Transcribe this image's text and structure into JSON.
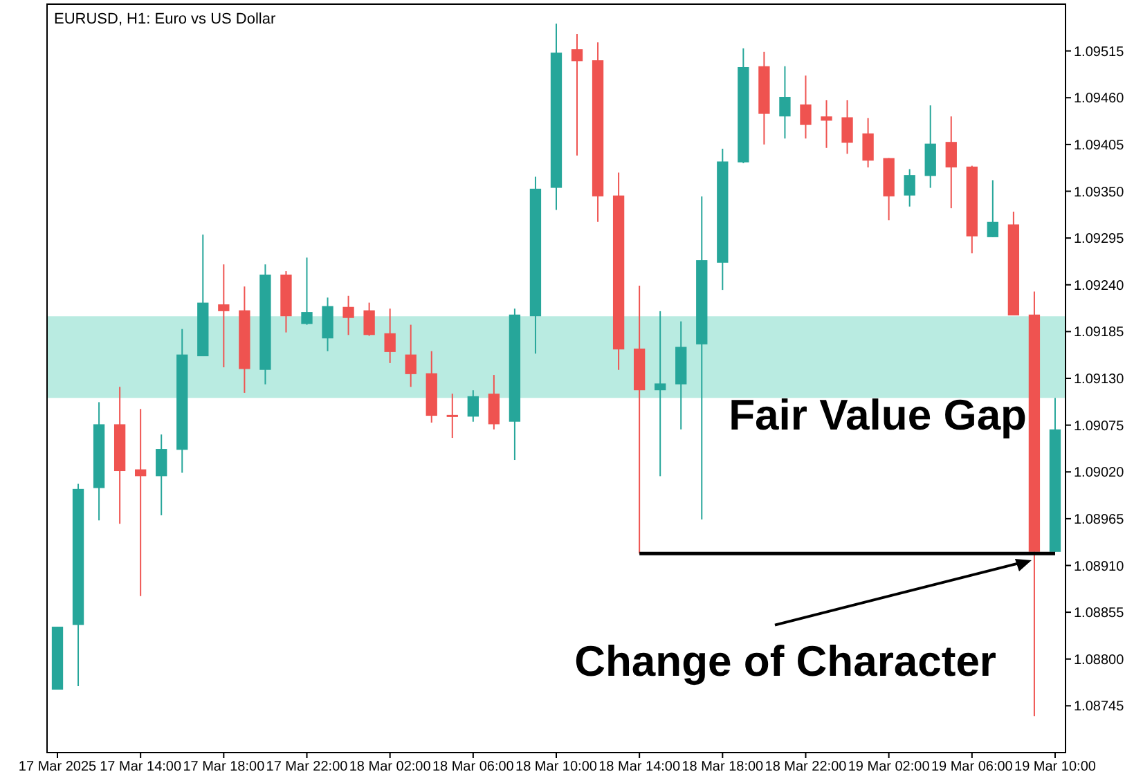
{
  "chart_data": {
    "type": "candlestick",
    "title": "EURUSD, H1:  Euro vs US Dollar",
    "categories": [
      "17 Mar 2025",
      null,
      null,
      null,
      "17 Mar 14:00",
      null,
      null,
      null,
      "17 Mar 18:00",
      null,
      null,
      null,
      "17 Mar 22:00",
      null,
      null,
      null,
      "18 Mar 02:00",
      null,
      null,
      null,
      "18 Mar 06:00",
      null,
      null,
      null,
      "18 Mar 10:00",
      null,
      null,
      null,
      "18 Mar 14:00",
      null,
      null,
      null,
      "18 Mar 18:00",
      null,
      null,
      null,
      "18 Mar 22:00",
      null,
      null,
      null,
      "19 Mar 02:00",
      null,
      null,
      null,
      "19 Mar 06:00",
      null,
      null,
      null,
      "19 Mar 10:00"
    ],
    "ohlc": [
      [
        1.08764,
        1.08838,
        1.08764,
        1.08838
      ],
      [
        1.0884,
        1.09006,
        1.08768,
        1.09
      ],
      [
        1.09001,
        1.09102,
        1.08963,
        1.09076
      ],
      [
        1.09076,
        1.0912,
        1.08959,
        1.09021
      ],
      [
        1.09023,
        1.09094,
        1.08874,
        1.09015
      ],
      [
        1.09015,
        1.09064,
        1.08969,
        1.09047
      ],
      [
        1.09046,
        1.09188,
        1.09019,
        1.09158
      ],
      [
        1.09156,
        1.09299,
        1.09156,
        1.09219
      ],
      [
        1.09217,
        1.09264,
        1.09143,
        1.09209
      ],
      [
        1.0921,
        1.09238,
        1.09113,
        1.09141
      ],
      [
        1.0914,
        1.09264,
        1.09123,
        1.09252
      ],
      [
        1.09252,
        1.09256,
        1.09184,
        1.09203
      ],
      [
        1.09194,
        1.09272,
        1.09193,
        1.09208
      ],
      [
        1.09177,
        1.09225,
        1.09162,
        1.09215
      ],
      [
        1.09214,
        1.09227,
        1.09181,
        1.09201
      ],
      [
        1.0921,
        1.09219,
        1.0918,
        1.09181
      ],
      [
        1.09183,
        1.09212,
        1.09148,
        1.09161
      ],
      [
        1.09158,
        1.09193,
        1.0912,
        1.09135
      ],
      [
        1.09136,
        1.09162,
        1.09078,
        1.09086
      ],
      [
        1.09087,
        1.09112,
        1.0906,
        1.09085
      ],
      [
        1.09085,
        1.09116,
        1.09079,
        1.09109
      ],
      [
        1.09112,
        1.09134,
        1.0907,
        1.09076
      ],
      [
        1.09079,
        1.09212,
        1.09034,
        1.09205
      ],
      [
        1.09203,
        1.09367,
        1.09159,
        1.09353
      ],
      [
        1.09354,
        1.09547,
        1.09328,
        1.09513
      ],
      [
        1.09517,
        1.09535,
        1.09392,
        1.09503
      ],
      [
        1.09504,
        1.09525,
        1.09314,
        1.09344
      ],
      [
        1.09345,
        1.09372,
        1.0914,
        1.09164
      ],
      [
        1.09165,
        1.09239,
        1.08924,
        1.09116
      ],
      [
        1.09116,
        1.09209,
        1.09015,
        1.09124
      ],
      [
        1.09123,
        1.09197,
        1.0907,
        1.09167
      ],
      [
        1.0917,
        1.09344,
        1.08964,
        1.09269
      ],
      [
        1.09266,
        1.094,
        1.09234,
        1.09385
      ],
      [
        1.09384,
        1.09518,
        1.09383,
        1.09496
      ],
      [
        1.09497,
        1.09514,
        1.09405,
        1.09441
      ],
      [
        1.09438,
        1.09497,
        1.09412,
        1.09461
      ],
      [
        1.09452,
        1.09486,
        1.09412,
        1.09428
      ],
      [
        1.09438,
        1.09457,
        1.09401,
        1.09433
      ],
      [
        1.09437,
        1.09457,
        1.09394,
        1.09407
      ],
      [
        1.09418,
        1.09436,
        1.09378,
        1.09386
      ],
      [
        1.09389,
        1.09389,
        1.09316,
        1.09344
      ],
      [
        1.09345,
        1.09376,
        1.09332,
        1.09369
      ],
      [
        1.09368,
        1.09451,
        1.09354,
        1.09406
      ],
      [
        1.09408,
        1.09438,
        1.0933,
        1.09378
      ],
      [
        1.09379,
        1.0938,
        1.09277,
        1.09297
      ],
      [
        1.09296,
        1.09363,
        1.09296,
        1.09314
      ],
      [
        1.09311,
        1.09326,
        1.09204,
        1.09204
      ],
      [
        1.09205,
        1.09232,
        1.08733,
        1.08926
      ],
      [
        1.08926,
        1.09107,
        1.08926,
        1.0907
      ]
    ],
    "colors": [
      "#26a69a",
      "#26a69a",
      "#26a69a",
      "#ef5350",
      "#ef5350",
      "#26a69a",
      "#26a69a",
      "#26a69a",
      "#ef5350",
      "#ef5350",
      "#26a69a",
      "#ef5350",
      "#26a69a",
      "#26a69a",
      "#ef5350",
      "#ef5350",
      "#ef5350",
      "#ef5350",
      "#ef5350",
      "#ef5350",
      "#26a69a",
      "#ef5350",
      "#26a69a",
      "#26a69a",
      "#26a69a",
      "#ef5350",
      "#ef5350",
      "#ef5350",
      "#ef5350",
      "#26a69a",
      "#26a69a",
      "#26a69a",
      "#26a69a",
      "#26a69a",
      "#ef5350",
      "#26a69a",
      "#ef5350",
      "#ef5350",
      "#ef5350",
      "#ef5350",
      "#ef5350",
      "#26a69a",
      "#26a69a",
      "#ef5350",
      "#ef5350",
      "#26a69a",
      "#ef5350",
      "#ef5350",
      "#26a69a"
    ],
    "series": [
      {
        "type": "line",
        "color": "#000000",
        "values": [
          null,
          null,
          null,
          null,
          null,
          null,
          null,
          null,
          null,
          null,
          null,
          null,
          null,
          null,
          null,
          null,
          null,
          null,
          null,
          null,
          null,
          null,
          null,
          null,
          null,
          null,
          null,
          null,
          1.08924,
          1.08924,
          1.08924,
          1.08924,
          1.08924,
          1.08924,
          1.08924,
          1.08924,
          1.08924,
          1.08924,
          1.08924,
          1.08924,
          1.08924,
          1.08924,
          1.08924,
          1.08924,
          1.08924,
          1.08924,
          1.08924,
          1.08924,
          1.08924
        ]
      }
    ],
    "bands": [
      {
        "axis": "y",
        "from": 1.09107,
        "to": 1.09203,
        "color": "#a8e6da"
      }
    ],
    "annotations": [
      "Fair Value Gap",
      "Change of Character"
    ],
    "ylim": [
      1.0869,
      1.0957
    ],
    "yticks": [
      {
        "value": 1.08745,
        "label": "1.08745"
      },
      {
        "value": 1.088,
        "label": "1.08800"
      },
      {
        "value": 1.08855,
        "label": "1.08855"
      },
      {
        "value": 1.0891,
        "label": "1.08910"
      },
      {
        "value": 1.08965,
        "label": "1.08965"
      },
      {
        "value": 1.0902,
        "label": "1.09020"
      },
      {
        "value": 1.09075,
        "label": "1.09075"
      },
      {
        "value": 1.0913,
        "label": "1.09130"
      },
      {
        "value": 1.09185,
        "label": "1.09185"
      },
      {
        "value": 1.0924,
        "label": "1.09240"
      },
      {
        "value": 1.09295,
        "label": "1.09295"
      },
      {
        "value": 1.0935,
        "label": "1.09350"
      },
      {
        "value": 1.09405,
        "label": "1.09405"
      },
      {
        "value": 1.0946,
        "label": "1.09460"
      },
      {
        "value": 1.09515,
        "label": "1.09515"
      }
    ],
    "grid": false,
    "legend": false
  }
}
